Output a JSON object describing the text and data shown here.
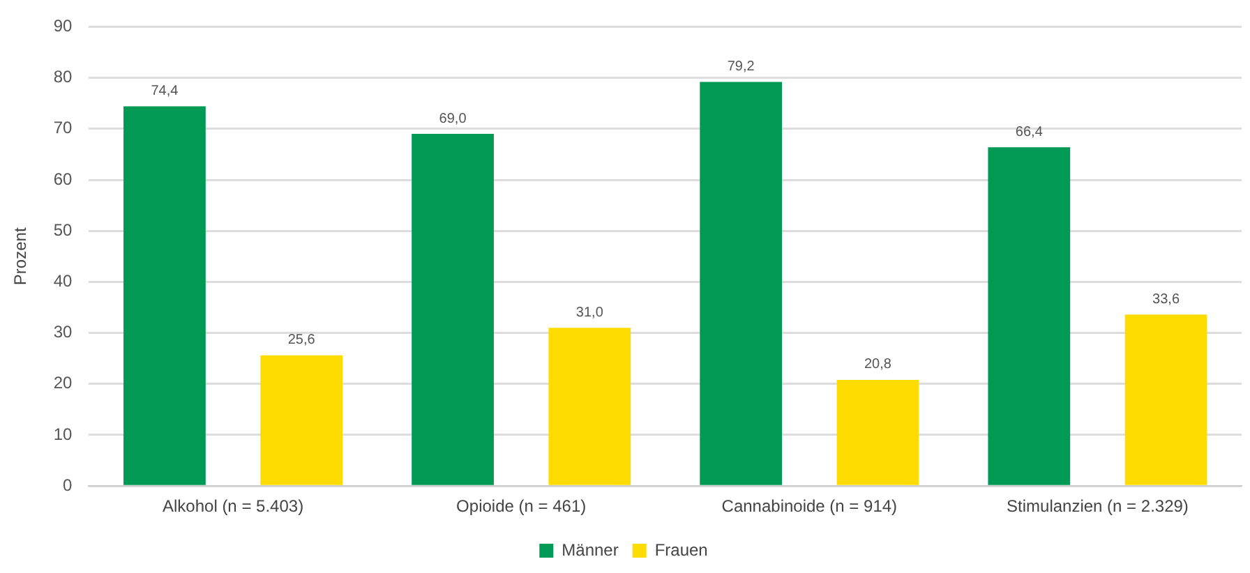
{
  "chart_data": {
    "type": "bar",
    "ylabel": "Prozent",
    "categories": [
      "Alkohol (n = 5.403)",
      "Opioide (n = 461)",
      "Cannabinoide (n = 914)",
      "Stimulanzien (n = 2.329)"
    ],
    "series": [
      {
        "name": "Männer",
        "color": "#009a54",
        "values": [
          74.4,
          69.0,
          79.2,
          66.4
        ],
        "value_labels": [
          "74,4",
          "69,0",
          "79,2",
          "66,4"
        ]
      },
      {
        "name": "Frauen",
        "color": "#ffdc00",
        "values": [
          25.6,
          31.0,
          20.8,
          33.6
        ],
        "value_labels": [
          "25,6",
          "31,0",
          "20,8",
          "33,6"
        ]
      }
    ],
    "ylim": [
      0,
      90
    ],
    "yticks": [
      0,
      10,
      20,
      30,
      40,
      50,
      60,
      70,
      80,
      90
    ],
    "grid": "y",
    "legend": "bottom"
  }
}
